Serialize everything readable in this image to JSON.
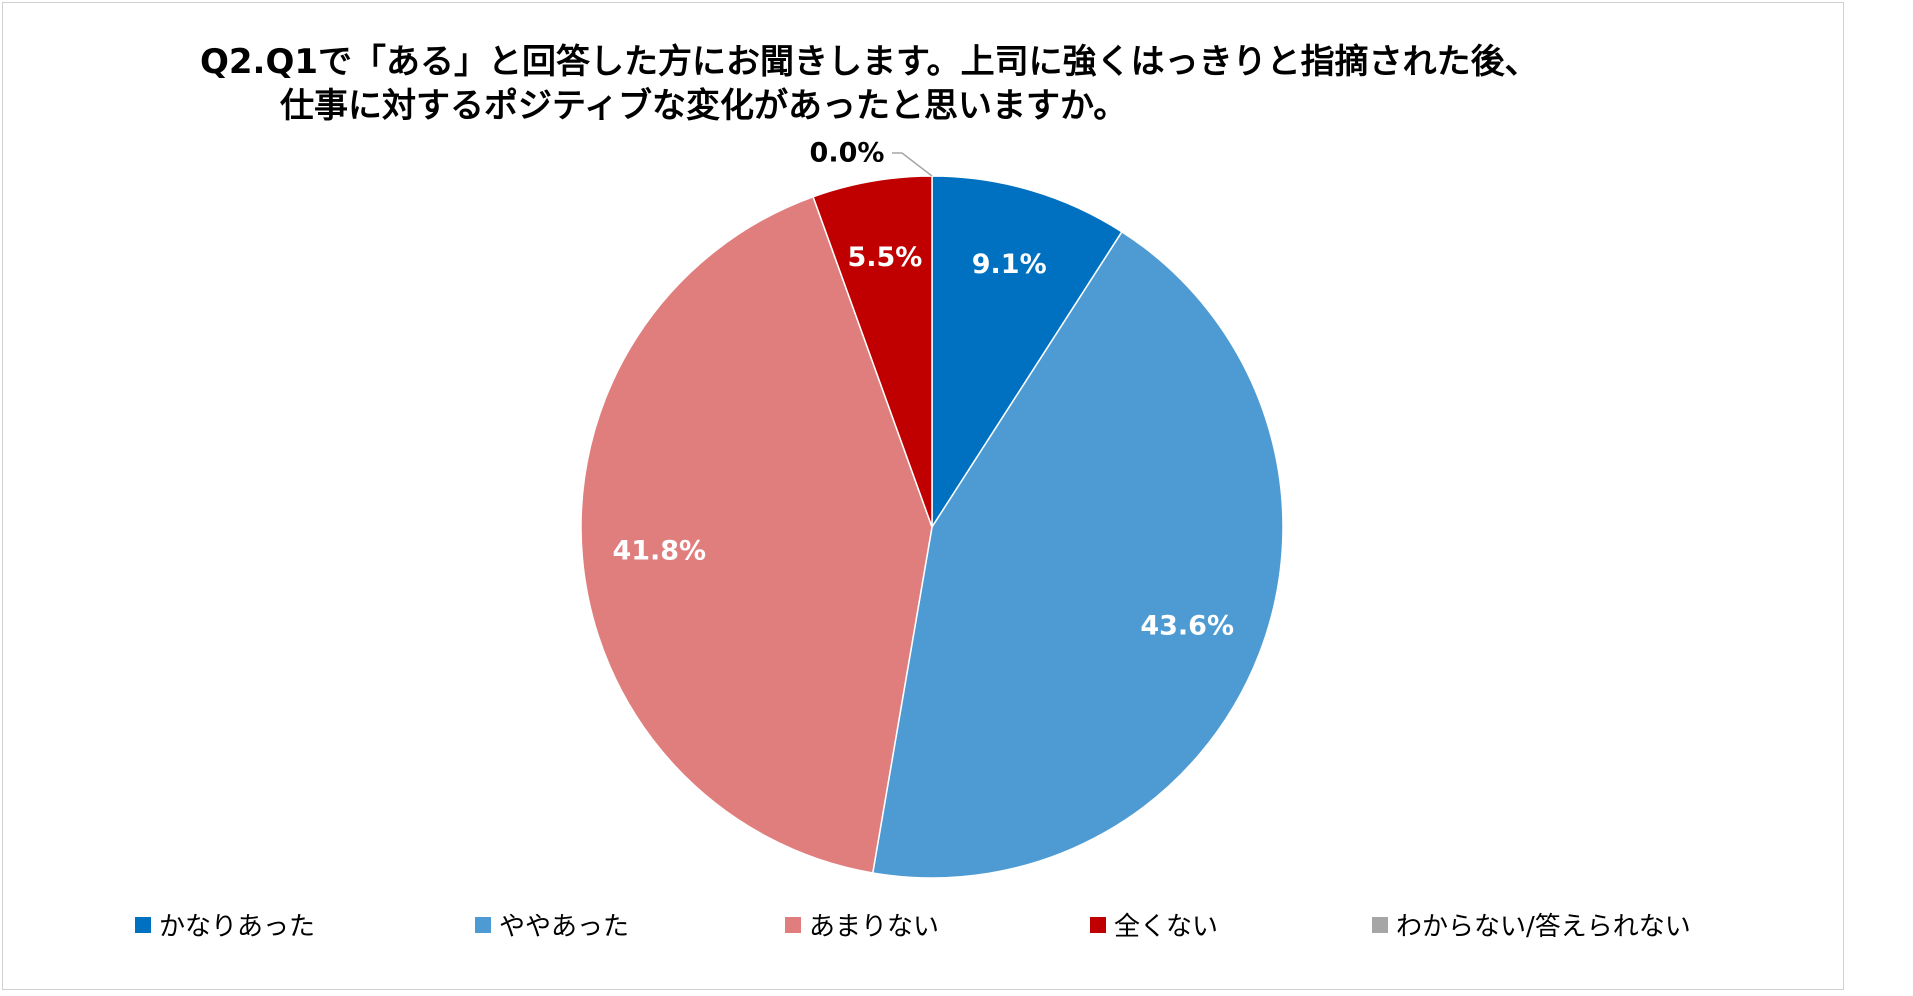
{
  "title_lines": [
    "Q2.Q1で「ある」と回答した方にお聞きします。上司に強くはっきりと指摘された後、",
    "仕事に対するポジティブな変化があったと思いますか。"
  ],
  "chart_data": {
    "type": "pie",
    "title": "Q2.Q1で「ある」と回答した方にお聞きします。上司に強くはっきりと指摘された後、仕事に対するポジティブな変化があったと思いますか。",
    "categories": [
      "かなりあった",
      "ややあった",
      "あまりない",
      "全くない",
      "わからない/答えられない"
    ],
    "values": [
      9.1,
      43.6,
      41.8,
      5.5,
      0.0
    ],
    "labels": [
      "9.1%",
      "43.6%",
      "41.8%",
      "5.5%",
      "0.0%"
    ],
    "colors": [
      "#0070C0",
      "#4E9BD3",
      "#E07E7E",
      "#C00000",
      "#A6A6A6"
    ],
    "label_colors": [
      "#ffffff",
      "#ffffff",
      "#ffffff",
      "#ffffff",
      "#000000"
    ],
    "start_angle": "12 o'clock",
    "direction": "clockwise",
    "legend_position": "bottom"
  }
}
